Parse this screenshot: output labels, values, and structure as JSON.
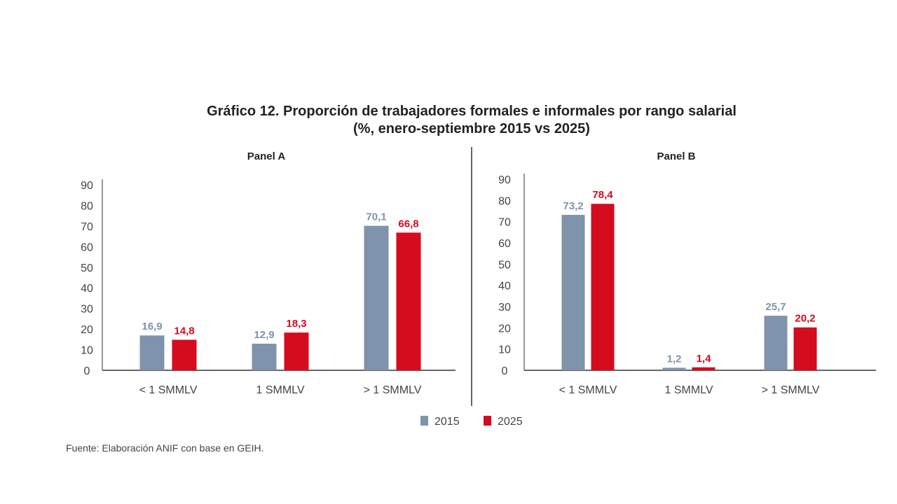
{
  "title_line1": "Gráfico 12. Proporción de trabajadores formales e informales por rango salarial",
  "title_line2": "(%, enero-septiembre 2015 vs 2025)",
  "source": "Fuente: Elaboración ANIF con base en GEIH.",
  "colors": {
    "2015": "#7f93ac",
    "2025": "#d50b1e"
  },
  "legend": [
    "2015",
    "2025"
  ],
  "chart_data": [
    {
      "type": "bar",
      "title": "Panel A",
      "categories": [
        "< 1 SMMLV",
        "1 SMMLV",
        "> 1 SMMLV"
      ],
      "series": [
        {
          "name": "2015",
          "values": [
            16.9,
            12.9,
            70.1
          ],
          "labels": [
            "16,9",
            "12,9",
            "70,1"
          ]
        },
        {
          "name": "2025",
          "values": [
            14.8,
            18.3,
            66.8
          ],
          "labels": [
            "14,8",
            "18,3",
            "66,8"
          ]
        }
      ],
      "yticks": [
        "0",
        "10",
        "20",
        "30",
        "40",
        "50",
        "60",
        "70",
        "80",
        "90"
      ],
      "ylim": [
        0,
        90
      ],
      "grid": false
    },
    {
      "type": "bar",
      "title": "Panel B",
      "categories": [
        "< 1 SMMLV",
        "1 SMMLV",
        "> 1 SMMLV"
      ],
      "series": [
        {
          "name": "2015",
          "values": [
            73.2,
            1.2,
            25.7
          ],
          "labels": [
            "73,2",
            "1,2",
            "25,7"
          ]
        },
        {
          "name": "2025",
          "values": [
            78.4,
            1.4,
            20.2
          ],
          "labels": [
            "78,4",
            "1,4",
            "20,2"
          ]
        }
      ],
      "yticks": [
        "0",
        "10",
        "20",
        "30",
        "40",
        "50",
        "60",
        "70",
        "80",
        "90"
      ],
      "ylim": [
        0,
        90
      ],
      "grid": false
    }
  ]
}
